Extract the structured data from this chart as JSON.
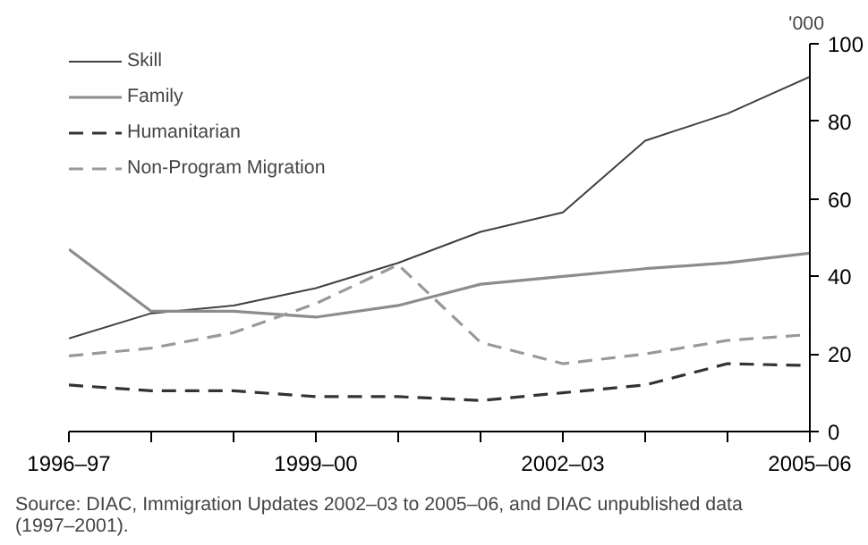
{
  "chart_data": {
    "type": "line",
    "ylabel": "'000",
    "categories": [
      "1996–97",
      null,
      null,
      "1999–00",
      null,
      null,
      "2002–03",
      null,
      null,
      "2005–06"
    ],
    "series": [
      {
        "name": "Skill",
        "color": "#404040",
        "line_style": "solid",
        "values": [
          24,
          30.5,
          32.5,
          37,
          43.5,
          51.5,
          56.5,
          75,
          82,
          91.5
        ]
      },
      {
        "name": "Family",
        "color": "#8c8c8c",
        "line_style": "solid",
        "values": [
          47,
          31,
          31,
          29.5,
          32.5,
          38,
          40,
          42,
          43.5,
          46
        ]
      },
      {
        "name": "Humanitarian",
        "color": "#333333",
        "line_style": "dashed",
        "values": [
          12,
          10.5,
          10.5,
          9,
          9,
          8,
          10,
          12,
          17.5,
          17
        ]
      },
      {
        "name": "Non-Program Migration",
        "color": "#999999",
        "line_style": "dashed",
        "values": [
          19.5,
          21.5,
          25.5,
          33,
          43,
          23,
          17.5,
          20,
          23.5,
          25
        ]
      }
    ],
    "ylim": [
      0,
      100
    ],
    "yticks": [
      0,
      20,
      40,
      60,
      80,
      100
    ],
    "grid": false,
    "legend": "top left",
    "annotations": [
      "Source: DIAC, Immigration Updates 2002–03 to 2005–06, and DIAC unpublished data\n(1997–2001)."
    ]
  }
}
